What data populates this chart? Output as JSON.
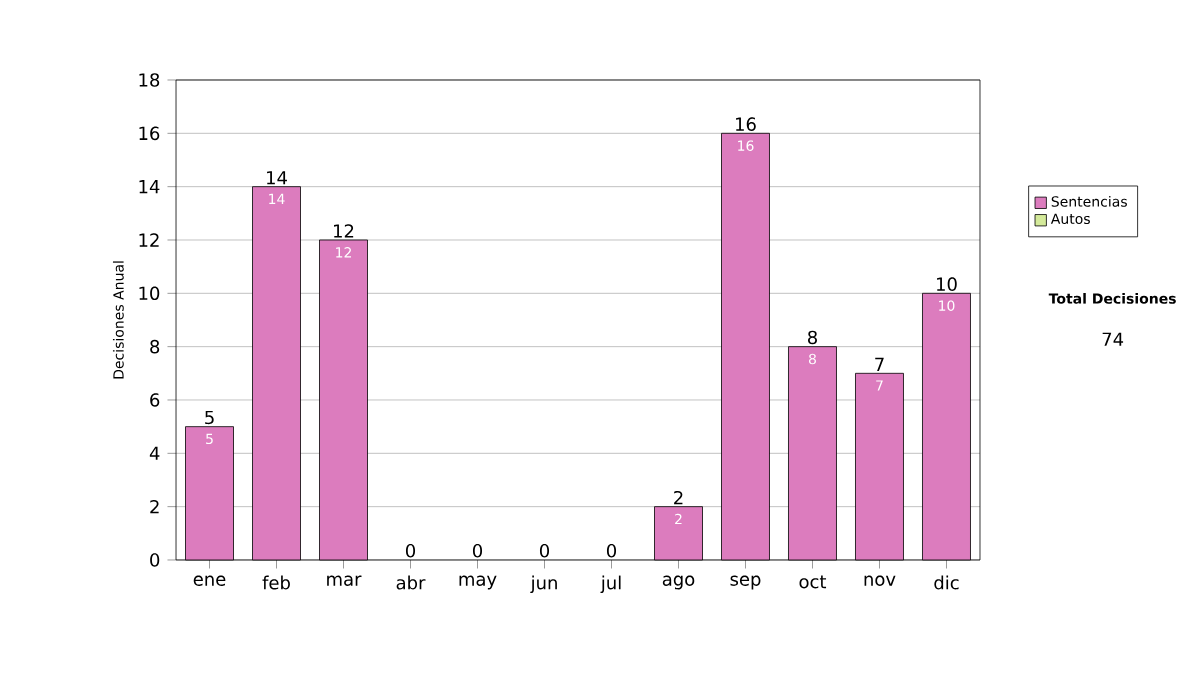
{
  "chart_data": {
    "type": "bar",
    "stacked": true,
    "ylabel": "Decisiones Anual",
    "categories": [
      "ene",
      "feb",
      "mar",
      "abr",
      "may",
      "jun",
      "jul",
      "ago",
      "sep",
      "oct",
      "nov",
      "dic"
    ],
    "series": [
      {
        "name": "Sentencias",
        "color": "#dc7cbe",
        "values": [
          5,
          14,
          12,
          0,
          0,
          0,
          0,
          2,
          16,
          8,
          7,
          10
        ],
        "value_labels": [
          "5",
          "14",
          "12",
          null,
          null,
          null,
          null,
          "2",
          "16",
          "8",
          "7",
          "10"
        ]
      },
      {
        "name": "Autos",
        "color": "#d4ea9a",
        "values": [
          0,
          0,
          0,
          0,
          0,
          0,
          0,
          0,
          0,
          0,
          0,
          0
        ]
      }
    ],
    "totals": [
      "5",
      "14",
      "12",
      "0",
      "0",
      "0",
      "0",
      "2",
      "16",
      "8",
      "7",
      "10"
    ],
    "ylim": [
      0,
      18
    ],
    "yticks": [
      0,
      2,
      4,
      6,
      8,
      10,
      12,
      14,
      16,
      18
    ],
    "grid": "y",
    "legend": "right",
    "annotations": [
      "Total Decisiones",
      "74"
    ]
  }
}
